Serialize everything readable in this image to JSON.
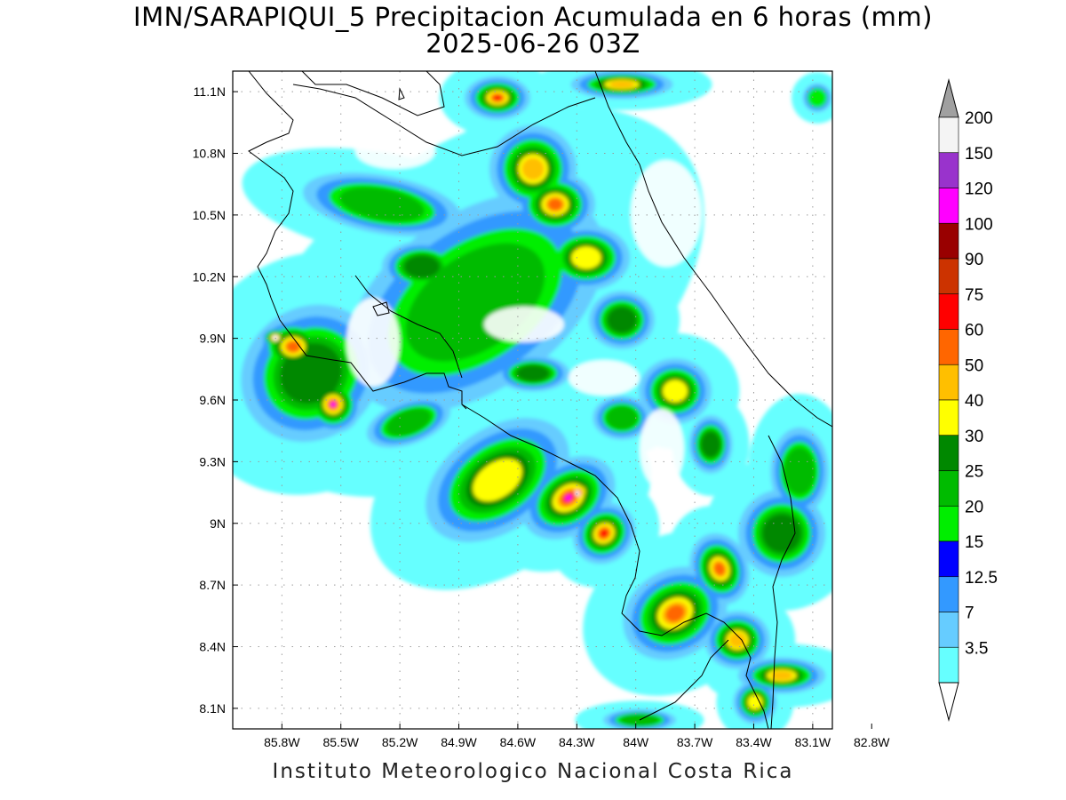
{
  "title": {
    "line1": "IMN/SARAPIQUI_5 Precipitacion Acumulada en 6 horas (mm)",
    "line2": "2025-06-26 03Z"
  },
  "footer": "Instituto Meteorologico Nacional Costa Rica",
  "map": {
    "lon_range": [
      -86.05,
      -83.0
    ],
    "lat_range": [
      8.0,
      11.2
    ],
    "lon_ticks": [
      {
        "v": -85.8,
        "label": "85.8W"
      },
      {
        "v": -85.5,
        "label": "85.5W"
      },
      {
        "v": -85.2,
        "label": "85.2W"
      },
      {
        "v": -84.9,
        "label": "84.9W"
      },
      {
        "v": -84.6,
        "label": "84.6W"
      },
      {
        "v": -84.3,
        "label": "84.3W"
      },
      {
        "v": -84.0,
        "label": "84W"
      },
      {
        "v": -83.7,
        "label": "83.7W"
      },
      {
        "v": -83.4,
        "label": "83.4W"
      },
      {
        "v": -83.1,
        "label": "83.1W"
      },
      {
        "v": -82.8,
        "label": "82.8W"
      }
    ],
    "lat_ticks": [
      {
        "v": 11.1,
        "label": "11.1N"
      },
      {
        "v": 10.8,
        "label": "10.8N"
      },
      {
        "v": 10.5,
        "label": "10.5N"
      },
      {
        "v": 10.2,
        "label": "10.2N"
      },
      {
        "v": 9.9,
        "label": "9.9N"
      },
      {
        "v": 9.6,
        "label": "9.6N"
      },
      {
        "v": 9.3,
        "label": "9.3N"
      },
      {
        "v": 9.0,
        "label": "9N"
      },
      {
        "v": 8.7,
        "label": "8.7N"
      },
      {
        "v": 8.4,
        "label": "8.4N"
      },
      {
        "v": 8.1,
        "label": "8.1N"
      }
    ],
    "grid": true
  },
  "colorbar": {
    "labels": [
      "200",
      "150",
      "120",
      "100",
      "90",
      "75",
      "60",
      "50",
      "40",
      "30",
      "25",
      "20",
      "15",
      "12.5",
      "7",
      "3.5"
    ],
    "colors": [
      "#f4f4f4",
      "#9933cc",
      "#ff00ff",
      "#990000",
      "#cc3300",
      "#ff0000",
      "#ff6600",
      "#ffbf00",
      "#ffff00",
      "#008800",
      "#00bb00",
      "#00ee00",
      "#0000ff",
      "#3399ff",
      "#66ccff",
      "#66ffff"
    ],
    "top_arrow_color": "#a0a0a0",
    "bottom_arrow_color": "#ffffff"
  }
}
